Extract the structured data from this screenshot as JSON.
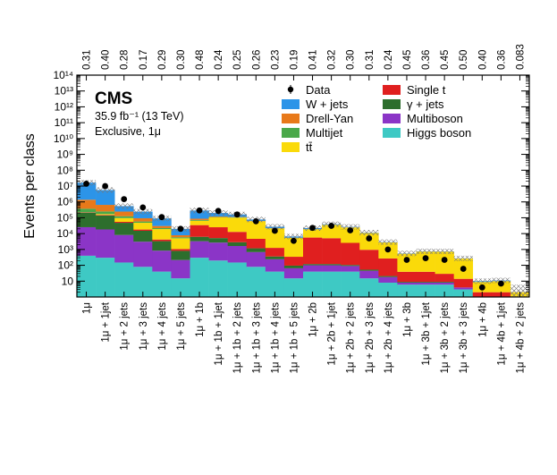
{
  "chart_data": {
    "type": "bar",
    "stacked": true,
    "scale": "log",
    "ylabel": "Events per class",
    "ylim": [
      1,
      100000000000000
    ],
    "y_ticks": [
      {
        "value": 10,
        "label": "10"
      },
      {
        "value": 100,
        "label": "10²"
      },
      {
        "value": 1000,
        "label": "10³"
      },
      {
        "value": 10000,
        "label": "10⁴"
      },
      {
        "value": 100000,
        "label": "10⁵"
      },
      {
        "value": 1000000,
        "label": "10⁶"
      },
      {
        "value": 10000000,
        "label": "10⁷"
      },
      {
        "value": 100000000,
        "label": "10⁸"
      },
      {
        "value": 1000000000,
        "label": "10⁹"
      },
      {
        "value": 10000000000,
        "label": "10¹⁰"
      },
      {
        "value": 100000000000,
        "label": "10¹¹"
      },
      {
        "value": 1000000000000,
        "label": "10¹²"
      },
      {
        "value": 10000000000000,
        "label": "10¹³"
      },
      {
        "value": 100000000000000,
        "label": "10¹⁴"
      }
    ],
    "categories": [
      "1μ",
      "1μ + 1jet",
      "1μ + 2 jets",
      "1μ + 3 jets",
      "1μ + 4 jets",
      "1μ + 5 jets",
      "1μ + 1b",
      "1μ + 1b + 1jet",
      "1μ + 1b + 2 jets",
      "1μ + 1b + 3 jets",
      "1μ + 1b + 4 jets",
      "1μ + 1b + 5 jets",
      "1μ + 2b",
      "1μ + 2b + 1jet",
      "1μ + 2b + 2 jets",
      "1μ + 2b + 3 jets",
      "1μ + 2b + 4 jets",
      "1μ + 3b",
      "1μ + 3b + 1jet",
      "1μ + 3b + 2 jets",
      "1μ + 3b + 3 jets",
      "1μ + 4b",
      "1μ + 4b + 1jet",
      "1μ + 4b + 2 jets"
    ],
    "top_labels": [
      "0.31",
      "0.40",
      "0.28",
      "0.17",
      "0.29",
      "0.30",
      "0.48",
      "0.24",
      "0.25",
      "0.26",
      "0.23",
      "0.19",
      "0.41",
      "0.32",
      "0.30",
      "0.31",
      "0.24",
      "0.45",
      "0.36",
      "0.45",
      "0.50",
      "0.40",
      "0.36",
      "0.083"
    ],
    "series": [
      {
        "name": "Higgs boson",
        "color": "#3ec9c4",
        "values": [
          400,
          300,
          150,
          80,
          40,
          15,
          300,
          200,
          150,
          80,
          40,
          15,
          40,
          40,
          40,
          15,
          8,
          6,
          6,
          6,
          3,
          1,
          1,
          0
        ]
      },
      {
        "name": "Multiboson",
        "color": "#8b35c7",
        "values": [
          25000,
          18000,
          8000,
          3000,
          800,
          200,
          3000,
          2500,
          1500,
          600,
          200,
          50,
          60,
          60,
          50,
          30,
          10,
          2,
          2,
          2,
          1,
          0,
          0,
          0
        ]
      },
      {
        "name": "γ + jets",
        "color": "#2d6e2d",
        "values": [
          180000,
          120000,
          40000,
          12000,
          2500,
          600,
          3000,
          2500,
          1200,
          500,
          120,
          30,
          20,
          20,
          15,
          8,
          3,
          1,
          1,
          1,
          0,
          0,
          0,
          0
        ]
      },
      {
        "name": "Single t",
        "color": "#e01f1f",
        "values": [
          10000,
          12000,
          7000,
          3000,
          900,
          250,
          28000,
          20000,
          10000,
          3500,
          900,
          250,
          5500,
          5000,
          2500,
          900,
          250,
          30,
          30,
          20,
          10,
          1,
          1,
          0
        ]
      },
      {
        "name": "tt̄",
        "color": "#fada0a",
        "values": [
          5000,
          20000,
          40000,
          30000,
          15000,
          4000,
          30000,
          80000,
          90000,
          55000,
          20000,
          5000,
          13000,
          30000,
          22000,
          10000,
          2500,
          500,
          700,
          700,
          250,
          7,
          8,
          2
        ]
      },
      {
        "name": "Multijet",
        "color": "#4aa84a",
        "values": [
          150000,
          80000,
          30000,
          10000,
          3000,
          800,
          8000,
          6000,
          3000,
          1200,
          400,
          100,
          300,
          300,
          150,
          60,
          15,
          1,
          1,
          1,
          1,
          0,
          0,
          0
        ]
      },
      {
        "name": "Drell-Yan",
        "color": "#e8791a",
        "values": [
          1000000,
          400000,
          120000,
          35000,
          8000,
          2000,
          15000,
          10000,
          5000,
          2000,
          500,
          120,
          300,
          300,
          200,
          80,
          20,
          2,
          2,
          2,
          1,
          0,
          0,
          0
        ]
      },
      {
        "name": "W + jets",
        "color": "#2c94e8",
        "values": [
          15000000,
          5000000,
          300000,
          150000,
          60000,
          12000,
          200000,
          80000,
          50000,
          15000,
          5000,
          1000,
          3000,
          3000,
          1500,
          500,
          100,
          20,
          20,
          20,
          5,
          1,
          1,
          0
        ]
      }
    ],
    "data": [
      14000000,
      10000000,
      1500000,
      450000,
      110000,
      20000,
      290000,
      270000,
      160000,
      60000,
      15000,
      3500,
      23000,
      31000,
      16000,
      5000,
      1000,
      220,
      280,
      220,
      60,
      4,
      7,
      0
    ],
    "legend": [
      {
        "label": "Data",
        "marker": "data"
      },
      {
        "label": "Single t",
        "color": "#e01f1f"
      },
      {
        "label": "W + jets",
        "color": "#2c94e8"
      },
      {
        "label": "γ + jets",
        "color": "#2d6e2d"
      },
      {
        "label": "Drell-Yan",
        "color": "#e8791a"
      },
      {
        "label": "Multiboson",
        "color": "#8b35c7"
      },
      {
        "label": "Multijet",
        "color": "#4aa84a"
      },
      {
        "label": "Higgs boson",
        "color": "#3ec9c4"
      },
      {
        "label": "tt̄",
        "color": "#fada0a"
      }
    ],
    "legend_position": "top-right",
    "annotation": {
      "experiment": "CMS",
      "luminosity": "35.9 fb⁻¹ (13 TeV)",
      "selection": "Exclusive, 1μ"
    }
  }
}
